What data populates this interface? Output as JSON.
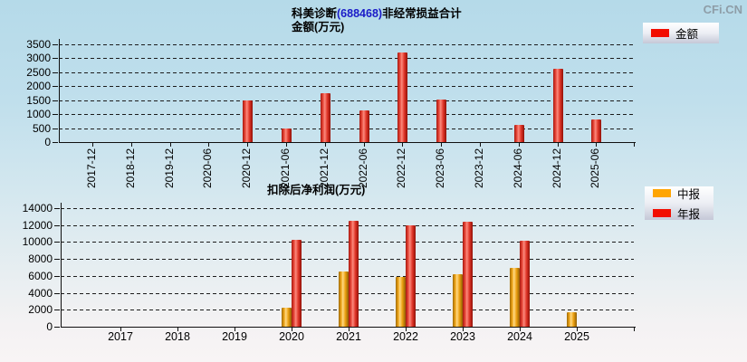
{
  "watermark": "CFi.CN",
  "chart_data": [
    {
      "type": "bar",
      "title": "科美诊断(688468)非经常损益合计",
      "title_prefix": "科美诊断",
      "title_code": "(688468)",
      "title_suffix": "非经常损益合计",
      "subtitle": "金额(万元)",
      "categories": [
        "2017-12",
        "2018-12",
        "2019-12",
        "2020-06",
        "2020-12",
        "2021-06",
        "2021-12",
        "2022-06",
        "2022-12",
        "2023-06",
        "2023-12",
        "2024-06",
        "2024-12",
        "2025-06"
      ],
      "series": [
        {
          "name": "金额",
          "color": "#ee1100",
          "values": [
            null,
            null,
            null,
            null,
            1480,
            470,
            1750,
            1120,
            3200,
            1510,
            null,
            620,
            2600,
            820
          ]
        }
      ],
      "ylim": [
        0,
        3500
      ],
      "yticks": [
        0,
        500,
        1000,
        1500,
        2000,
        2500,
        3000,
        3500
      ],
      "grid": "dashed-horizontal",
      "legend_position": "top-right"
    },
    {
      "type": "bar",
      "title": "扣除后净利润(万元)",
      "categories": [
        "2017",
        "2018",
        "2019",
        "2020",
        "2021",
        "2022",
        "2023",
        "2024",
        "2025"
      ],
      "series": [
        {
          "name": "中报",
          "color": "#ffa500",
          "values": [
            null,
            null,
            null,
            2250,
            6500,
            5900,
            6150,
            7000,
            1750
          ]
        },
        {
          "name": "年报",
          "color": "#ee1100",
          "values": [
            null,
            null,
            null,
            10300,
            12480,
            12000,
            12450,
            10200,
            null
          ]
        }
      ],
      "ylim": [
        0,
        14000
      ],
      "yticks": [
        0,
        2000,
        4000,
        6000,
        8000,
        10000,
        12000,
        14000
      ],
      "grid": "dashed-horizontal",
      "legend_position": "top-right"
    }
  ]
}
